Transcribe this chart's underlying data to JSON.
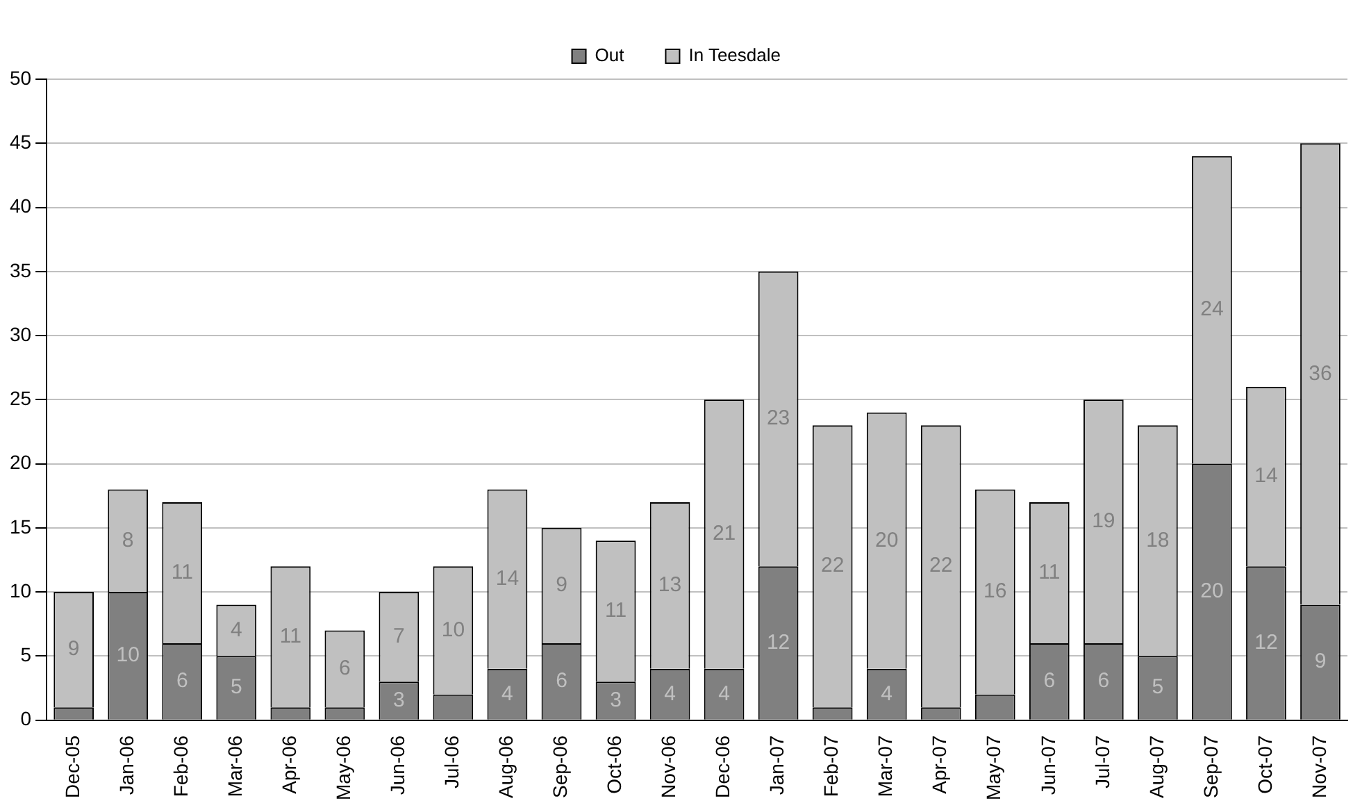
{
  "chart_data": {
    "type": "bar",
    "stacked": true,
    "legend": "top",
    "grid": "y",
    "categories": [
      "Dec-05",
      "Jan-06",
      "Feb-06",
      "Mar-06",
      "Apr-06",
      "May-06",
      "Jun-06",
      "Jul-06",
      "Aug-06",
      "Sep-06",
      "Oct-06",
      "Nov-06",
      "Dec-06",
      "Jan-07",
      "Feb-07",
      "Mar-07",
      "Apr-07",
      "May-07",
      "Jun-07",
      "Jul-07",
      "Aug-07",
      "Sep-07",
      "Oct-07",
      "Nov-07"
    ],
    "ylim": [
      0,
      50
    ],
    "yticks": [
      0,
      5,
      10,
      15,
      20,
      25,
      30,
      35,
      40,
      45,
      50
    ],
    "series": [
      {
        "name": "Out",
        "color": "#808080",
        "values": [
          1,
          10,
          6,
          5,
          1,
          1,
          3,
          2,
          4,
          6,
          3,
          4,
          4,
          12,
          1,
          4,
          1,
          2,
          6,
          6,
          5,
          20,
          12,
          9
        ],
        "value_labels": [
          null,
          "10",
          "6",
          "5",
          null,
          null,
          "3",
          null,
          "4",
          "6",
          "3",
          "4",
          "4",
          "12",
          null,
          "4",
          null,
          null,
          "6",
          "6",
          "5",
          "20",
          "12",
          "9"
        ]
      },
      {
        "name": "In Teesdale",
        "color": "#c0c0c0",
        "values": [
          9,
          8,
          11,
          4,
          11,
          6,
          7,
          10,
          14,
          9,
          11,
          13,
          21,
          23,
          22,
          20,
          22,
          16,
          11,
          19,
          18,
          24,
          14,
          36
        ],
        "value_labels": [
          "9",
          "8",
          "11",
          "4",
          "11",
          "6",
          "7",
          "10",
          "14",
          "9",
          "11",
          "13",
          "21",
          "23",
          "22",
          "20",
          "22",
          "16",
          "11",
          "19",
          "18",
          "24",
          "14",
          "36"
        ]
      }
    ]
  }
}
